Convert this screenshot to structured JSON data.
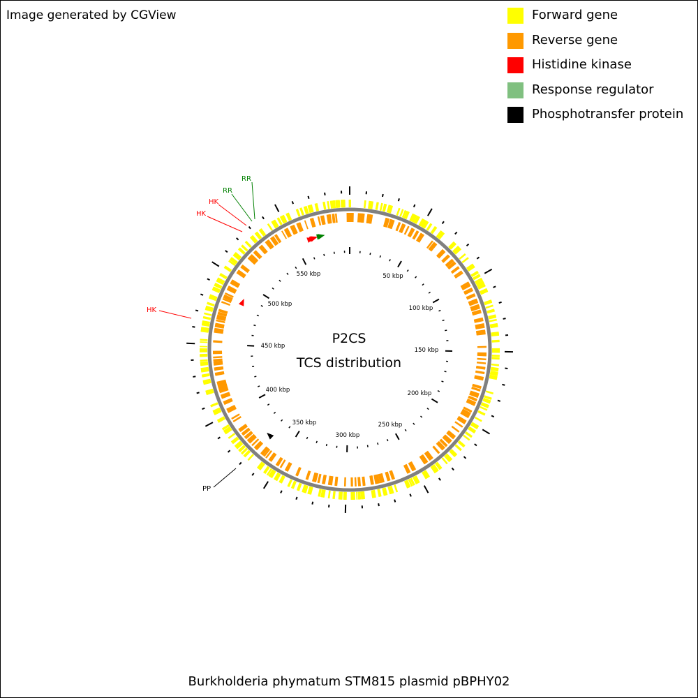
{
  "credit": "Image generated by CGView",
  "legend": [
    {
      "label": "Forward gene",
      "color": "#ffff00"
    },
    {
      "label": "Reverse gene",
      "color": "#ff9900"
    },
    {
      "label": "Histidine kinase",
      "color": "#ff0000"
    },
    {
      "label": "Response regulator",
      "color": "#80c080"
    },
    {
      "label": "Phosphotransfer protein",
      "color": "#000000"
    }
  ],
  "map": {
    "title_line1": "P2CS",
    "title_line2": "TCS distribution",
    "caption": "Burkholderia phymatum STM815 plasmid pBPHY02",
    "sequence_length_kbp": 595,
    "backbone_color": "#808080",
    "kbp_labels": [
      "50 kbp",
      "100 kbp",
      "150 kbp",
      "200 kbp",
      "250 kbp",
      "300 kbp",
      "350 kbp",
      "400 kbp",
      "450 kbp",
      "500 kbp",
      "550 kbp"
    ],
    "feature_markers": [
      {
        "type": "Histidine kinase",
        "position_kbp": 566,
        "color": "#ff0000"
      },
      {
        "type": "Histidine kinase",
        "position_kbp": 565,
        "color": "#ff0000"
      },
      {
        "type": "Histidine kinase",
        "position_kbp": 563,
        "color": "#ff0000"
      },
      {
        "type": "Response regulator",
        "position_kbp": 571,
        "color": "#008000"
      },
      {
        "type": "Response regulator",
        "position_kbp": 572,
        "color": "#008000"
      },
      {
        "type": "Histidine kinase",
        "position_kbp": 486,
        "color": "#ff0000"
      },
      {
        "type": "Phosphotransfer protein",
        "position_kbp": 369,
        "color": "#000000"
      }
    ],
    "callouts": [
      {
        "label": "RR",
        "color": "#008000"
      },
      {
        "label": "RR",
        "color": "#008000"
      },
      {
        "label": "HK",
        "color": "#ff0000"
      },
      {
        "label": "HK",
        "color": "#ff0000"
      },
      {
        "label": "HK",
        "color": "#ff0000"
      },
      {
        "label": "PP",
        "color": "#000000"
      }
    ]
  }
}
